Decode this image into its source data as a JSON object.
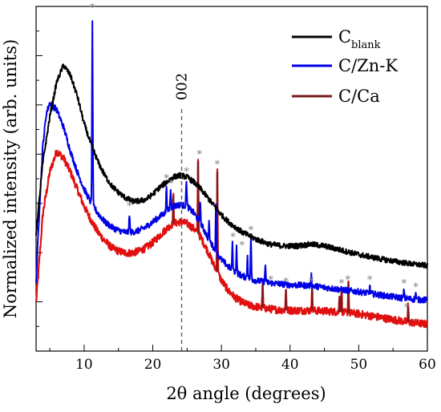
{
  "chart_data": {
    "type": "line",
    "title": "",
    "xlabel": "2θ angle  (degrees)",
    "ylabel": "Normalized intensity (arb. units)",
    "xlim": [
      3,
      60
    ],
    "x_ticks": [
      10,
      20,
      30,
      40,
      50,
      60
    ],
    "y_tick_labels_shown": false,
    "grid": false,
    "legend_position": "top-right",
    "series": [
      {
        "name": "C",
        "name_subscript": "blank",
        "color": "#000000",
        "points": [
          [
            3,
            0.34
          ],
          [
            4,
            0.55
          ],
          [
            5,
            0.68
          ],
          [
            6,
            0.78
          ],
          [
            7,
            0.83
          ],
          [
            8,
            0.8
          ],
          [
            9,
            0.74
          ],
          [
            10,
            0.66
          ],
          [
            11,
            0.6
          ],
          [
            12,
            0.55
          ],
          [
            13,
            0.51
          ],
          [
            14,
            0.48
          ],
          [
            15,
            0.46
          ],
          [
            16,
            0.445
          ],
          [
            17,
            0.435
          ],
          [
            18,
            0.435
          ],
          [
            19,
            0.44
          ],
          [
            20,
            0.455
          ],
          [
            21,
            0.475
          ],
          [
            22,
            0.49
          ],
          [
            23,
            0.505
          ],
          [
            24,
            0.51
          ],
          [
            25,
            0.505
          ],
          [
            26,
            0.49
          ],
          [
            27,
            0.47
          ],
          [
            28,
            0.445
          ],
          [
            29,
            0.42
          ],
          [
            30,
            0.395
          ],
          [
            31,
            0.375
          ],
          [
            32,
            0.36
          ],
          [
            33,
            0.345
          ],
          [
            35,
            0.325
          ],
          [
            37,
            0.31
          ],
          [
            39,
            0.305
          ],
          [
            41,
            0.305
          ],
          [
            43,
            0.31
          ],
          [
            45,
            0.305
          ],
          [
            47,
            0.295
          ],
          [
            50,
            0.28
          ],
          [
            53,
            0.268
          ],
          [
            56,
            0.258
          ],
          [
            58,
            0.252
          ],
          [
            60,
            0.248
          ]
        ]
      },
      {
        "name": "C/Zn-K",
        "color": "#0000e6",
        "points": [
          [
            3,
            0.2
          ],
          [
            3.5,
            0.42
          ],
          [
            4,
            0.6
          ],
          [
            4.5,
            0.69
          ],
          [
            5,
            0.72
          ],
          [
            6,
            0.7
          ],
          [
            7,
            0.65
          ],
          [
            8,
            0.58
          ],
          [
            9,
            0.52
          ],
          [
            10,
            0.47
          ],
          [
            11,
            0.43
          ],
          [
            12,
            0.4
          ],
          [
            13,
            0.375
          ],
          [
            14,
            0.36
          ],
          [
            15,
            0.35
          ],
          [
            16,
            0.345
          ],
          [
            17,
            0.345
          ],
          [
            18,
            0.35
          ],
          [
            19,
            0.36
          ],
          [
            20,
            0.375
          ],
          [
            21,
            0.39
          ],
          [
            22,
            0.405
          ],
          [
            23,
            0.42
          ],
          [
            24,
            0.425
          ],
          [
            25,
            0.42
          ],
          [
            26,
            0.4
          ],
          [
            27,
            0.37
          ],
          [
            28,
            0.33
          ],
          [
            29,
            0.295
          ],
          [
            30,
            0.265
          ],
          [
            31,
            0.245
          ],
          [
            32,
            0.23
          ],
          [
            33,
            0.218
          ],
          [
            35,
            0.205
          ],
          [
            37,
            0.198
          ],
          [
            40,
            0.192
          ],
          [
            43,
            0.19
          ],
          [
            46,
            0.182
          ],
          [
            50,
            0.172
          ],
          [
            54,
            0.16
          ],
          [
            58,
            0.15
          ],
          [
            60,
            0.148
          ]
        ],
        "peaks": [
          [
            11.2,
            0.96
          ],
          [
            16.6,
            0.4
          ],
          [
            22.0,
            0.48
          ],
          [
            22.6,
            0.47
          ],
          [
            24.9,
            0.5
          ],
          [
            26.9,
            0.44
          ],
          [
            28.2,
            0.37
          ],
          [
            29.2,
            0.42
          ],
          [
            31.6,
            0.31
          ],
          [
            32.2,
            0.3
          ],
          [
            33.8,
            0.28
          ],
          [
            34.3,
            0.33
          ],
          [
            36.4,
            0.25
          ],
          [
            43.1,
            0.22
          ],
          [
            51.6,
            0.19
          ],
          [
            56.6,
            0.18
          ],
          [
            58.3,
            0.17
          ]
        ]
      },
      {
        "name": "C/Ca",
        "color": "#e01010",
        "accent_color": "#7a1a1a",
        "points": [
          [
            3,
            0.14
          ],
          [
            4,
            0.4
          ],
          [
            5,
            0.52
          ],
          [
            6,
            0.58
          ],
          [
            7,
            0.56
          ],
          [
            8,
            0.52
          ],
          [
            9,
            0.47
          ],
          [
            10,
            0.42
          ],
          [
            11,
            0.38
          ],
          [
            12,
            0.345
          ],
          [
            13,
            0.32
          ],
          [
            14,
            0.3
          ],
          [
            15,
            0.29
          ],
          [
            16,
            0.285
          ],
          [
            17,
            0.285
          ],
          [
            18,
            0.29
          ],
          [
            19,
            0.3
          ],
          [
            20,
            0.315
          ],
          [
            21,
            0.335
          ],
          [
            22,
            0.355
          ],
          [
            23,
            0.37
          ],
          [
            24,
            0.375
          ],
          [
            25,
            0.37
          ],
          [
            26,
            0.355
          ],
          [
            27,
            0.33
          ],
          [
            28,
            0.29
          ],
          [
            29,
            0.245
          ],
          [
            30,
            0.205
          ],
          [
            31,
            0.175
          ],
          [
            32,
            0.155
          ],
          [
            33,
            0.142
          ],
          [
            34,
            0.133
          ],
          [
            36,
            0.125
          ],
          [
            38,
            0.12
          ],
          [
            40,
            0.118
          ],
          [
            43,
            0.118
          ],
          [
            46,
            0.115
          ],
          [
            50,
            0.108
          ],
          [
            53,
            0.098
          ],
          [
            56,
            0.088
          ],
          [
            58,
            0.082
          ],
          [
            60,
            0.078
          ]
        ],
        "peaks": [
          [
            23.0,
            0.45
          ],
          [
            26.6,
            0.55
          ],
          [
            29.4,
            0.52
          ],
          [
            36.0,
            0.19
          ],
          [
            39.4,
            0.18
          ],
          [
            43.2,
            0.19
          ],
          [
            47.2,
            0.16
          ],
          [
            47.5,
            0.18
          ],
          [
            48.5,
            0.2
          ],
          [
            57.2,
            0.13
          ]
        ]
      }
    ],
    "reference_line": {
      "x": 24.2,
      "label": "002"
    },
    "asterisk_markers": [
      [
        11.2,
        1.0
      ],
      [
        16.6,
        0.425
      ],
      [
        22.0,
        0.505
      ],
      [
        22.7,
        0.49
      ],
      [
        24.9,
        0.525
      ],
      [
        26.8,
        0.575
      ],
      [
        29.4,
        0.545
      ],
      [
        31.7,
        0.335
      ],
      [
        33.0,
        0.31
      ],
      [
        34.3,
        0.355
      ],
      [
        37.2,
        0.21
      ],
      [
        39.4,
        0.205
      ],
      [
        43.1,
        0.205
      ],
      [
        47.5,
        0.2
      ],
      [
        48.4,
        0.21
      ],
      [
        51.6,
        0.21
      ],
      [
        56.6,
        0.2
      ],
      [
        58.3,
        0.19
      ],
      [
        57.0,
        0.13
      ]
    ],
    "asterisk_symbol": "*"
  }
}
